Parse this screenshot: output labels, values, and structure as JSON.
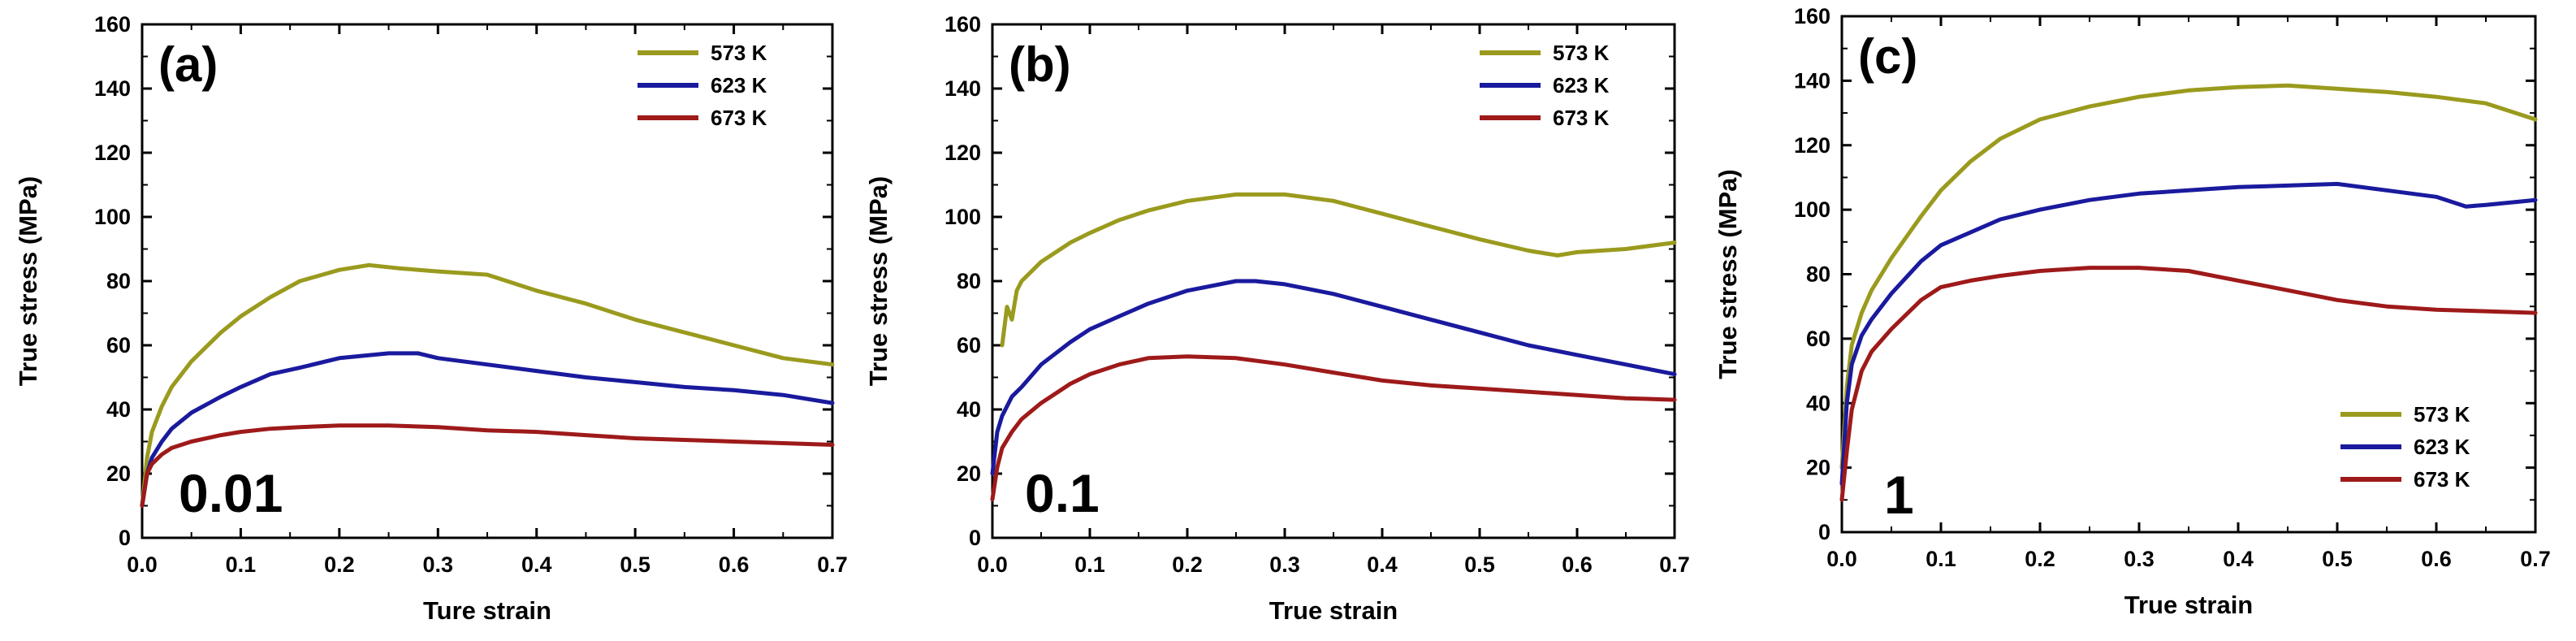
{
  "colors": {
    "573 K": "#9a9a1e",
    "623 K": "#1a1a9e",
    "673 K": "#9e1a1a"
  },
  "chart_data": [
    {
      "type": "line",
      "panel_label": "(a)",
      "rate_label": "0.01",
      "xlabel": "Ture strain",
      "ylabel": "True stress (MPa)",
      "xlim": [
        0,
        0.7
      ],
      "ylim": [
        0,
        160
      ],
      "xticks": [
        "0.0",
        "0.1",
        "0.2",
        "0.3",
        "0.4",
        "0.5",
        "0.6",
        "0.7"
      ],
      "yticks": [
        "0",
        "20",
        "40",
        "60",
        "80",
        "100",
        "120",
        "140",
        "160"
      ],
      "legend_position": "top-right",
      "series": [
        {
          "name": "573 K",
          "x": [
            0,
            0.005,
            0.01,
            0.02,
            0.03,
            0.05,
            0.08,
            0.1,
            0.13,
            0.16,
            0.2,
            0.23,
            0.26,
            0.3,
            0.35,
            0.4,
            0.45,
            0.5,
            0.55,
            0.6,
            0.65,
            0.7
          ],
          "y": [
            10,
            25,
            33,
            41,
            47,
            55,
            64,
            69,
            75,
            80,
            83.5,
            85,
            84,
            83,
            82,
            77,
            73,
            68,
            64,
            60,
            56,
            54
          ]
        },
        {
          "name": "623 K",
          "x": [
            0,
            0.005,
            0.01,
            0.02,
            0.03,
            0.05,
            0.08,
            0.1,
            0.13,
            0.16,
            0.2,
            0.25,
            0.28,
            0.3,
            0.35,
            0.4,
            0.45,
            0.5,
            0.55,
            0.6,
            0.65,
            0.7
          ],
          "y": [
            10,
            20,
            25,
            30,
            34,
            39,
            44,
            47,
            51,
            53,
            56,
            57.5,
            57.5,
            56,
            54,
            52,
            50,
            48.5,
            47,
            46,
            44.5,
            42
          ]
        },
        {
          "name": "673 K",
          "x": [
            0,
            0.005,
            0.01,
            0.02,
            0.03,
            0.05,
            0.08,
            0.1,
            0.13,
            0.16,
            0.2,
            0.25,
            0.3,
            0.35,
            0.4,
            0.45,
            0.5,
            0.55,
            0.6,
            0.65,
            0.7
          ],
          "y": [
            10,
            20,
            23,
            26,
            28,
            30,
            32,
            33,
            34,
            34.5,
            35,
            35,
            34.5,
            33.5,
            33,
            32,
            31,
            30.5,
            30,
            29.5,
            29
          ]
        }
      ]
    },
    {
      "type": "line",
      "panel_label": "(b)",
      "rate_label": "0.1",
      "xlabel": "True strain",
      "ylabel": "True stress (MPa)",
      "xlim": [
        0,
        0.7
      ],
      "ylim": [
        0,
        160
      ],
      "xticks": [
        "0.0",
        "0.1",
        "0.2",
        "0.3",
        "0.4",
        "0.5",
        "0.6",
        "0.7"
      ],
      "yticks": [
        "0",
        "20",
        "40",
        "60",
        "80",
        "100",
        "120",
        "140",
        "160"
      ],
      "legend_position": "top-right",
      "series": [
        {
          "name": "573 K",
          "x": [
            0.01,
            0.015,
            0.02,
            0.025,
            0.03,
            0.05,
            0.08,
            0.1,
            0.13,
            0.16,
            0.2,
            0.25,
            0.3,
            0.35,
            0.4,
            0.45,
            0.5,
            0.55,
            0.58,
            0.6,
            0.65,
            0.7
          ],
          "y": [
            60,
            72,
            68,
            77,
            80,
            86,
            92,
            95,
            99,
            102,
            105,
            107,
            107,
            105,
            101,
            97,
            93,
            89.5,
            88,
            89,
            90,
            92
          ]
        },
        {
          "name": "623 K",
          "x": [
            0,
            0.005,
            0.01,
            0.02,
            0.03,
            0.05,
            0.08,
            0.1,
            0.13,
            0.16,
            0.2,
            0.25,
            0.27,
            0.3,
            0.35,
            0.4,
            0.45,
            0.5,
            0.55,
            0.6,
            0.65,
            0.7
          ],
          "y": [
            20,
            33,
            38,
            44,
            47,
            54,
            61,
            65,
            69,
            73,
            77,
            80,
            80,
            79,
            76,
            72,
            68,
            64,
            60,
            57,
            54,
            51
          ]
        },
        {
          "name": "673 K",
          "x": [
            0,
            0.005,
            0.01,
            0.02,
            0.03,
            0.05,
            0.08,
            0.1,
            0.13,
            0.16,
            0.2,
            0.25,
            0.3,
            0.35,
            0.4,
            0.45,
            0.5,
            0.55,
            0.6,
            0.65,
            0.7
          ],
          "y": [
            12,
            22,
            28,
            33,
            37,
            42,
            48,
            51,
            54,
            56,
            56.5,
            56,
            54,
            51.5,
            49,
            47.5,
            46.5,
            45.5,
            44.5,
            43.5,
            43
          ]
        }
      ]
    },
    {
      "type": "line",
      "panel_label": "(c)",
      "rate_label": "1",
      "xlabel": "True strain",
      "ylabel": "True stress (MPa)",
      "xlim": [
        0,
        0.7
      ],
      "ylim": [
        0,
        160
      ],
      "xticks": [
        "0.0",
        "0.1",
        "0.2",
        "0.3",
        "0.4",
        "0.5",
        "0.6",
        "0.7"
      ],
      "yticks": [
        "0",
        "20",
        "40",
        "60",
        "80",
        "100",
        "120",
        "140",
        "160"
      ],
      "legend_position": "bottom-right",
      "series": [
        {
          "name": "573 K",
          "x": [
            0,
            0.005,
            0.01,
            0.02,
            0.03,
            0.05,
            0.08,
            0.1,
            0.13,
            0.16,
            0.2,
            0.25,
            0.3,
            0.35,
            0.4,
            0.45,
            0.5,
            0.55,
            0.6,
            0.65,
            0.7
          ],
          "y": [
            20,
            45,
            58,
            68,
            75,
            85,
            98,
            106,
            115,
            122,
            128,
            132,
            135,
            137,
            138,
            138.5,
            137.5,
            136.5,
            135,
            133,
            128
          ]
        },
        {
          "name": "623 K",
          "x": [
            0,
            0.005,
            0.01,
            0.02,
            0.03,
            0.05,
            0.08,
            0.1,
            0.13,
            0.16,
            0.2,
            0.25,
            0.3,
            0.35,
            0.4,
            0.45,
            0.5,
            0.55,
            0.6,
            0.63,
            0.65,
            0.7
          ],
          "y": [
            15,
            40,
            52,
            61,
            66,
            74,
            84,
            89,
            93,
            97,
            100,
            103,
            105,
            106,
            107,
            107.5,
            108,
            106,
            104,
            101,
            101.5,
            103
          ]
        },
        {
          "name": "673 K",
          "x": [
            0,
            0.005,
            0.01,
            0.02,
            0.03,
            0.05,
            0.08,
            0.1,
            0.13,
            0.16,
            0.2,
            0.25,
            0.3,
            0.35,
            0.4,
            0.45,
            0.5,
            0.55,
            0.6,
            0.65,
            0.7
          ],
          "y": [
            10,
            25,
            38,
            50,
            56,
            63,
            72,
            76,
            78,
            79.5,
            81,
            82,
            82,
            81,
            78,
            75,
            72,
            70,
            69,
            68.5,
            68
          ]
        }
      ]
    }
  ]
}
